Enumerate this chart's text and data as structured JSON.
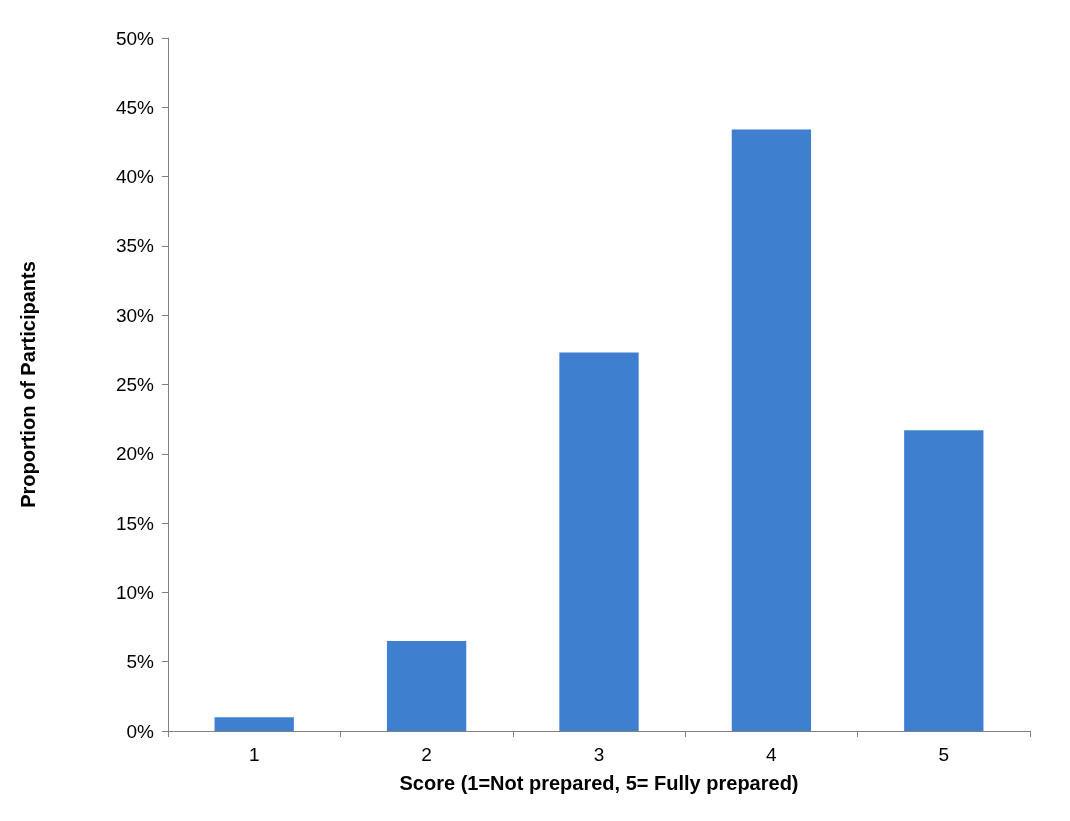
{
  "chart_data": {
    "type": "bar",
    "xlabel": "Score (1=Not prepared, 5= Fully prepared)",
    "ylabel": "Proportion of Participants",
    "categories": [
      "1",
      "2",
      "3",
      "4",
      "5"
    ],
    "values": [
      1.0,
      6.5,
      27.3,
      43.4,
      21.7
    ],
    "color": "#3f7fd0",
    "ylim": [
      0,
      50
    ],
    "yticks": [
      {
        "value": 0,
        "label": "0%"
      },
      {
        "value": 5,
        "label": "5%"
      },
      {
        "value": 10,
        "label": "10%"
      },
      {
        "value": 15,
        "label": "15%"
      },
      {
        "value": 20,
        "label": "20%"
      },
      {
        "value": 25,
        "label": "25%"
      },
      {
        "value": 30,
        "label": "30%"
      },
      {
        "value": 35,
        "label": "35%"
      },
      {
        "value": 40,
        "label": "40%"
      },
      {
        "value": 45,
        "label": "45%"
      },
      {
        "value": 50,
        "label": "50%"
      }
    ],
    "grid": false
  }
}
